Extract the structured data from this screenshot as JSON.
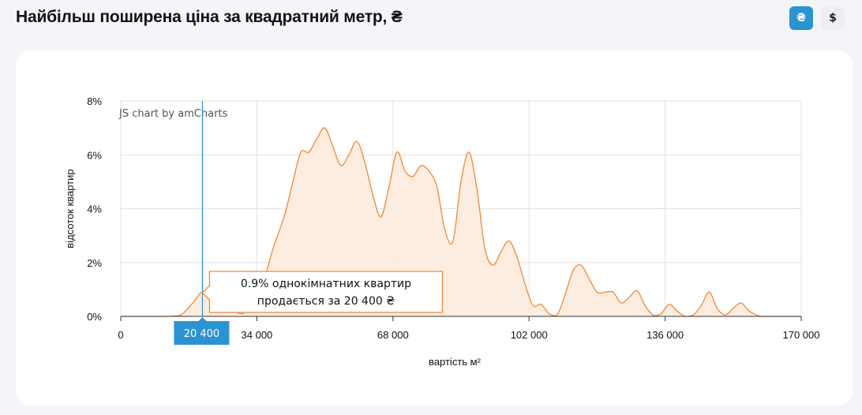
{
  "page": {
    "title": "Найбільш поширена ціна за квадратний метр, ₴",
    "currency_buttons": [
      {
        "label": "₴",
        "active": true
      },
      {
        "label": "$",
        "active": false
      }
    ]
  },
  "colors": {
    "accent": "#2b93d1",
    "series_line": "#f0883a",
    "series_fill": "#fdebdd",
    "grid": "#e3e3e3"
  },
  "chart_data": {
    "type": "area",
    "xlabel": "вартість м²",
    "ylabel": "відсоток квартир",
    "xlim": [
      0,
      170000
    ],
    "ylim": [
      0,
      8
    ],
    "x_ticks": [
      0,
      34000,
      68000,
      102000,
      136000,
      170000
    ],
    "x_tick_labels": [
      "0",
      "34 000",
      "68 000",
      "102 000",
      "136 000",
      "170 000"
    ],
    "y_ticks": [
      0,
      2,
      4,
      6,
      8
    ],
    "y_tick_labels": [
      "0%",
      "2%",
      "4%",
      "6%",
      "8%"
    ],
    "grid": true,
    "credit": "JS chart by amCharts",
    "cursor": {
      "x": 20400,
      "label": "20 400",
      "tooltip_line1": "0.9% однокімнатних квартир",
      "tooltip_line2": "продається за 20 400 ₴"
    },
    "series": [
      {
        "x": [
          0,
          6000,
          12000,
          15000,
          18000,
          20400,
          23000,
          26000,
          29000,
          31000,
          33000,
          36000,
          38000,
          41000,
          43000,
          45000,
          47000,
          49000,
          51000,
          53000,
          55000,
          57000,
          59000,
          61000,
          63000,
          65000,
          67000,
          69000,
          71000,
          73000,
          75000,
          77000,
          79000,
          81000,
          83000,
          85000,
          87000,
          89000,
          91000,
          93000,
          95000,
          97000,
          99000,
          101000,
          103000,
          105000,
          107000,
          109000,
          111000,
          113000,
          115000,
          117000,
          119000,
          121000,
          123000,
          125000,
          127000,
          129000,
          131000,
          133000,
          135000,
          137000,
          139000,
          141000,
          143000,
          145000,
          147000,
          149000,
          151000,
          153000,
          155000,
          157000,
          160000,
          165000,
          170000
        ],
        "values": [
          0,
          0,
          0,
          0.05,
          0.5,
          0.9,
          0.6,
          0.5,
          0.15,
          0.15,
          0.6,
          1.5,
          2.5,
          3.8,
          5.0,
          6.1,
          6.1,
          6.6,
          7.0,
          6.3,
          5.6,
          6.0,
          6.5,
          5.7,
          4.5,
          3.7,
          4.8,
          6.1,
          5.4,
          5.2,
          5.6,
          5.4,
          4.8,
          3.2,
          2.8,
          5.0,
          6.1,
          4.7,
          2.5,
          1.9,
          2.4,
          2.8,
          2.2,
          1.2,
          0.4,
          0.45,
          0.1,
          0.05,
          0.8,
          1.7,
          1.9,
          1.4,
          0.9,
          0.9,
          0.9,
          0.5,
          0.7,
          0.95,
          0.4,
          0.05,
          0.1,
          0.45,
          0.2,
          0.0,
          0.05,
          0.4,
          0.9,
          0.3,
          0.05,
          0.3,
          0.5,
          0.2,
          0.0,
          0.0,
          0.0
        ]
      }
    ]
  }
}
